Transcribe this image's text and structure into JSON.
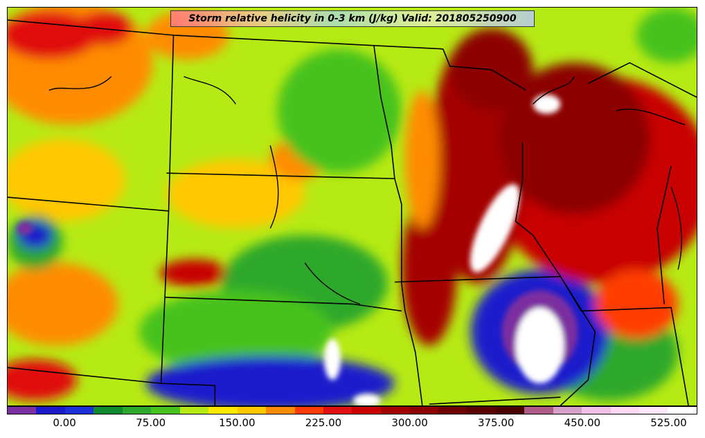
{
  "title": "Storm relative helicity in 0-3 km (J/kg) Valid: 201805250900",
  "colorbar": {
    "colors": [
      "#7b2fa0",
      "#1a1acc",
      "#1d2fd6",
      "#108a2e",
      "#2ea82a",
      "#46c21f",
      "#b6ea14",
      "#ffe800",
      "#ffc800",
      "#ff8c00",
      "#ff3c00",
      "#e01010",
      "#c80000",
      "#a50000",
      "#8c0000",
      "#6e0000",
      "#5a0000",
      "#4a0000",
      "#b05a8a",
      "#d4a0c8",
      "#f0c0e6",
      "#ffd8f6",
      "#ffe6fa",
      "#ffffff"
    ],
    "ticks": [
      {
        "label": "0.00"
      },
      {
        "label": "75.00"
      },
      {
        "label": "150.00"
      },
      {
        "label": "225.00"
      },
      {
        "label": "300.00"
      },
      {
        "label": "375.00"
      },
      {
        "label": "450.00"
      },
      {
        "label": "525.00"
      }
    ]
  },
  "legend_colors": {
    "background_low": "#b6ea14",
    "moderate": "#46c21f",
    "high_red": "#e01010",
    "very_high": "#8c0000",
    "extreme": "#ffffff",
    "negative": "#7b2fa0",
    "border_lines": "#000000"
  }
}
